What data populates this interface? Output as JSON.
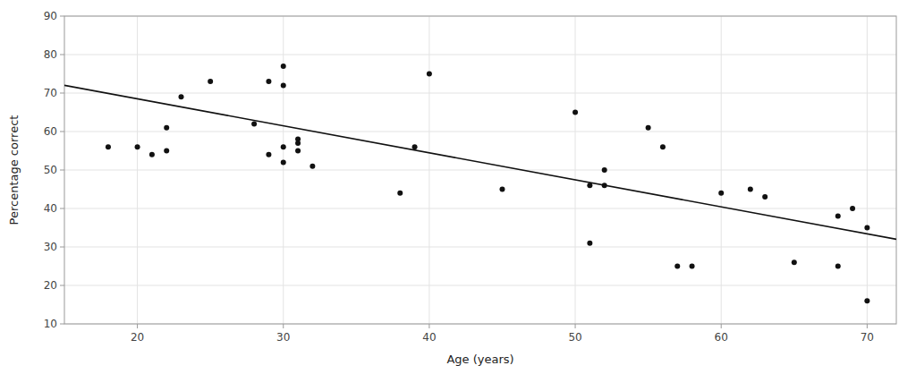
{
  "chart_data": {
    "type": "scatter",
    "xlabel": "Age (years)",
    "ylabel": "Percentage correct",
    "xlim": [
      15,
      72
    ],
    "ylim": [
      10,
      90
    ],
    "xticks": [
      20,
      30,
      40,
      50,
      60,
      70
    ],
    "yticks": [
      10,
      20,
      30,
      40,
      50,
      60,
      70,
      80,
      90
    ],
    "grid": true,
    "series": [
      {
        "type": "scatter",
        "color": "#111111",
        "x": [
          18,
          20,
          21,
          22,
          22,
          23,
          25,
          28,
          29,
          29,
          30,
          30,
          30,
          30,
          31,
          31,
          31,
          32,
          38,
          39,
          40,
          45,
          50,
          51,
          51,
          52,
          52,
          55,
          56,
          57,
          58,
          60,
          62,
          63,
          65,
          68,
          68,
          69,
          70,
          70
        ],
        "values": [
          56,
          56,
          54,
          61,
          55,
          69,
          73,
          62,
          54,
          73,
          72,
          77,
          56,
          52,
          57,
          55,
          58,
          51,
          44,
          56,
          75,
          45,
          65,
          31,
          46,
          46,
          50,
          61,
          56,
          25,
          25,
          44,
          45,
          43,
          26,
          38,
          25,
          40,
          35,
          16
        ]
      },
      {
        "type": "line",
        "color": "#111111",
        "x": [
          15,
          72
        ],
        "values": [
          72,
          32
        ]
      }
    ]
  }
}
